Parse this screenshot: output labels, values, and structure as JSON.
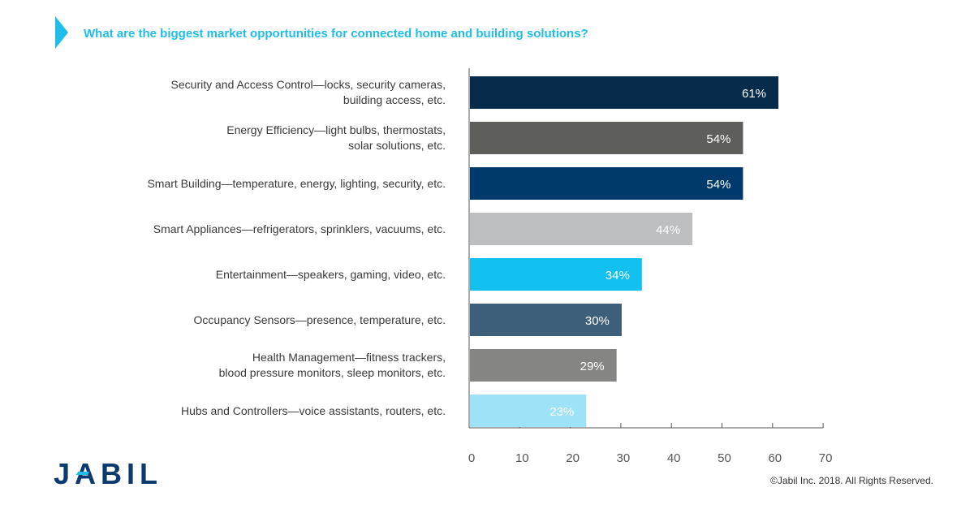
{
  "chart_data": {
    "type": "bar",
    "orientation": "horizontal",
    "title": "What are the biggest market opportunities for connected home and building solutions?",
    "categories": [
      [
        "Security and Access Control—locks, security cameras,",
        "building access, etc."
      ],
      [
        "Energy Efficiency—light bulbs, thermostats,",
        "solar solutions, etc."
      ],
      [
        "Smart Building—temperature, energy, lighting, security, etc."
      ],
      [
        "Smart Appliances—refrigerators, sprinklers, vacuums, etc."
      ],
      [
        "Entertainment—speakers, gaming, video, etc."
      ],
      [
        "Occupancy Sensors—presence, temperature, etc."
      ],
      [
        "Health Management—fitness trackers,",
        "blood pressure monitors, sleep monitors, etc."
      ],
      [
        "Hubs and Controllers—voice assistants, routers, etc."
      ]
    ],
    "values": [
      61,
      54,
      54,
      44,
      34,
      30,
      29,
      23
    ],
    "value_labels": [
      "61%",
      "54%",
      "54%",
      "44%",
      "34%",
      "30%",
      "29%",
      "23%"
    ],
    "colors": [
      "#062b4b",
      "#5e5e5a",
      "#003a6c",
      "#bcbec0",
      "#12c0f0",
      "#3e5f7a",
      "#858683",
      "#9ee2f7"
    ],
    "xlim": [
      0,
      70
    ],
    "xticks": [
      0,
      10,
      20,
      30,
      40,
      50,
      60,
      70
    ],
    "grid": false,
    "legend": "none"
  },
  "brand": {
    "logo_text": "JABIL"
  },
  "footer": {
    "copyright": "©Jabil Inc. 2018. All Rights Reserved."
  }
}
